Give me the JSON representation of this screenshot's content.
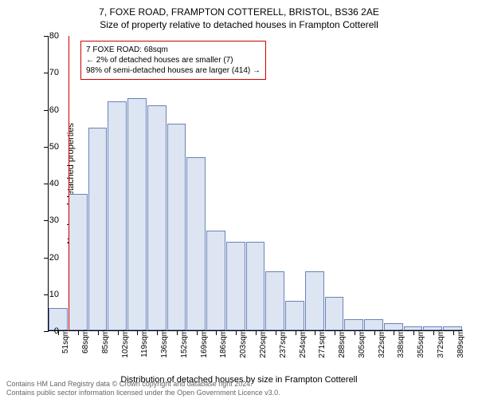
{
  "title": "7, FOXE ROAD, FRAMPTON COTTERELL, BRISTOL, BS36 2AE",
  "subtitle": "Size of property relative to detached houses in Frampton Cotterell",
  "y_axis_label": "Number of detached properties",
  "x_axis_caption": "Distribution of detached houses by size in Frampton Cotterell",
  "callout": {
    "line1": "7 FOXE ROAD: 68sqm",
    "line2": "← 2% of detached houses are smaller (7)",
    "line3": "98% of semi-detached houses are larger (414) →"
  },
  "footer_line1": "Contains HM Land Registry data © Crown copyright and database right 2024.",
  "footer_line2": "Contains public sector information licensed under the Open Government Licence v3.0.",
  "chart": {
    "type": "bar",
    "ylim": [
      0,
      80
    ],
    "ytick_step": 10,
    "bar_fill": "#dde4f2",
    "bar_border": "#6984b8",
    "ref_line_color": "#cc0000",
    "ref_line_x_index": 1,
    "callout_border": "#cc0000",
    "categories": [
      "51sqm",
      "68sqm",
      "85sqm",
      "102sqm",
      "119sqm",
      "136sqm",
      "152sqm",
      "169sqm",
      "186sqm",
      "203sqm",
      "220sqm",
      "237sqm",
      "254sqm",
      "271sqm",
      "288sqm",
      "305sqm",
      "322sqm",
      "338sqm",
      "355sqm",
      "372sqm",
      "389sqm"
    ],
    "values": [
      6,
      37,
      55,
      62,
      63,
      61,
      56,
      47,
      27,
      24,
      24,
      16,
      8,
      16,
      9,
      3,
      3,
      2,
      1,
      1,
      1
    ]
  }
}
